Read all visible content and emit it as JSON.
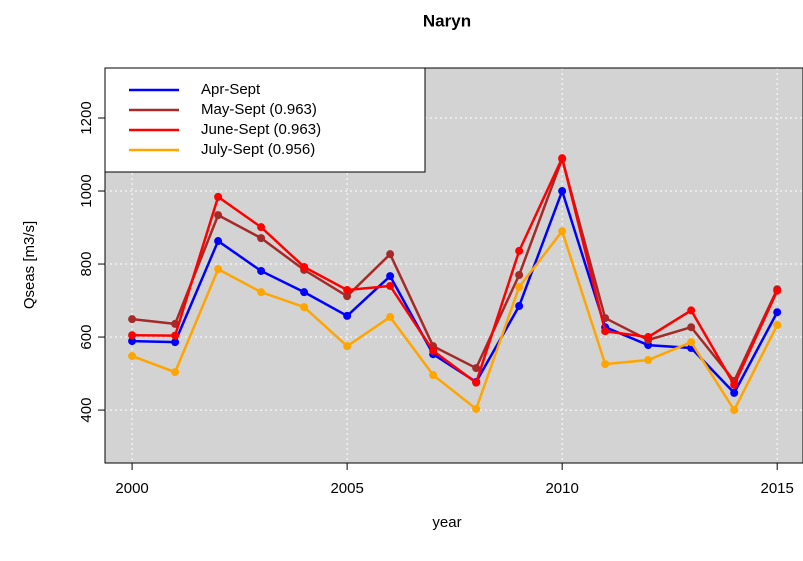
{
  "chart_data": {
    "type": "line",
    "title": "Naryn",
    "xlabel": "year",
    "ylabel": "Qseas [m3/s]",
    "x": [
      2000,
      2001,
      2002,
      2003,
      2004,
      2005,
      2006,
      2007,
      2008,
      2009,
      2010,
      2011,
      2012,
      2013,
      2014,
      2015
    ],
    "series": [
      {
        "name": "Apr-Sept",
        "color": "#0000ff",
        "values": [
          589,
          586,
          863,
          781,
          723,
          658,
          767,
          553,
          477,
          685,
          1000,
          627,
          578,
          570,
          447,
          668
        ]
      },
      {
        "name": "May-Sept (0.963)",
        "color": "#a52a2a",
        "values": [
          649,
          636,
          934,
          871,
          784,
          712,
          827,
          575,
          515,
          770,
          1088,
          652,
          592,
          627,
          480,
          731
        ]
      },
      {
        "name": "June-Sept (0.963)",
        "color": "#ff0000",
        "values": [
          605,
          604,
          984,
          901,
          792,
          729,
          740,
          562,
          475,
          836,
          1090,
          616,
          600,
          673,
          469,
          727
        ]
      },
      {
        "name": "July-Sept (0.956)",
        "color": "#ffa500",
        "values": [
          548,
          504,
          786,
          723,
          682,
          575,
          655,
          496,
          403,
          737,
          890,
          526,
          537,
          586,
          400,
          633
        ]
      }
    ],
    "xlim": [
      1999.37,
      2015.6
    ],
    "ylim": [
      255,
      1337
    ],
    "xticks": [
      2000,
      2005,
      2010,
      2015
    ],
    "yticks": [
      400,
      600,
      800,
      1000,
      1200
    ],
    "grid": true,
    "legend": "top-left",
    "background": "#d3d3d3"
  }
}
